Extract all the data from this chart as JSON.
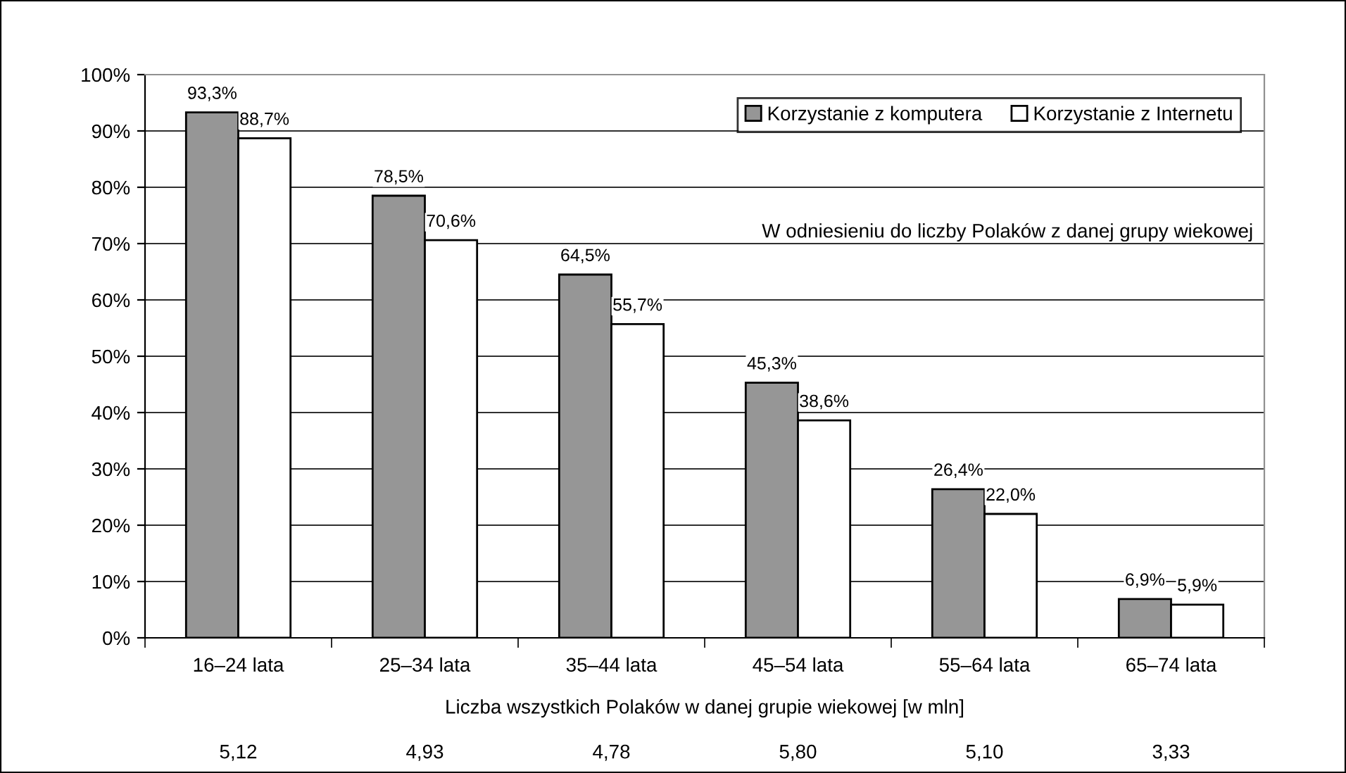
{
  "chart_data": {
    "type": "bar",
    "categories": [
      "16–24 lata",
      "25–34 lata",
      "35–44 lata",
      "45–54 lata",
      "55–64 lata",
      "65–74 lata"
    ],
    "series": [
      {
        "name": "Korzystanie z komputera",
        "color": "#969696",
        "values": [
          93.3,
          78.5,
          64.5,
          45.3,
          26.4,
          6.9
        ],
        "value_labels": [
          "93,3%",
          "78,5%",
          "64,5%",
          "45,3%",
          "26,4%",
          "6,9%"
        ]
      },
      {
        "name": "Korzystanie z Internetu",
        "color": "#ffffff",
        "values": [
          88.7,
          70.6,
          55.7,
          38.6,
          22.0,
          5.9
        ],
        "value_labels": [
          "88,7%",
          "70,6%",
          "55,7%",
          "38,6%",
          "22,0%",
          "5,9%"
        ]
      }
    ],
    "xlabel": "Liczba wszystkich Polaków w danej grupie wiekowej [w mln]",
    "annotations": [
      "W odniesieniu do liczby Polaków z danej grupy wiekowej",
      "5,12",
      "4,93",
      "4,78",
      "5,80",
      "5,10",
      "3,33"
    ],
    "ylim": [
      0,
      100
    ],
    "yticks": [
      {
        "value": 0,
        "label": "0%"
      },
      {
        "value": 10,
        "label": "10%"
      },
      {
        "value": 20,
        "label": "20%"
      },
      {
        "value": 30,
        "label": "30%"
      },
      {
        "value": 40,
        "label": "40%"
      },
      {
        "value": 50,
        "label": "50%"
      },
      {
        "value": 60,
        "label": "60%"
      },
      {
        "value": 70,
        "label": "70%"
      },
      {
        "value": 80,
        "label": "80%"
      },
      {
        "value": 90,
        "label": "90%"
      },
      {
        "value": 100,
        "label": "100%"
      }
    ],
    "grid": "y",
    "legend": "top right"
  }
}
